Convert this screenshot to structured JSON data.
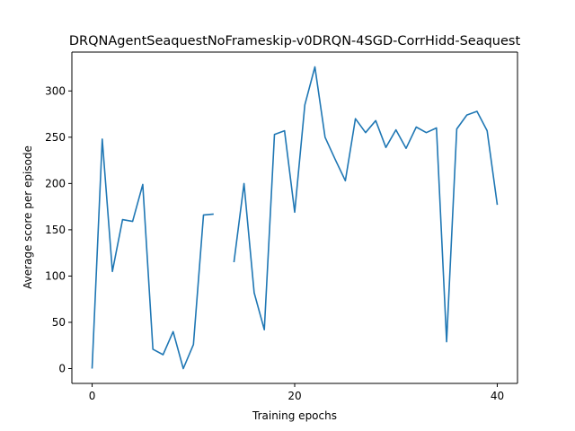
{
  "chart_data": {
    "type": "line",
    "title": "DRQNAgentSeaquestNoFrameskip-v0DRQN-4SGD-CorrHidd-Seaquest",
    "xlabel": "Training epochs",
    "ylabel": "Average score per episode",
    "xlim": [
      -2,
      42
    ],
    "ylim": [
      -16,
      342
    ],
    "xticks": [
      0,
      20,
      40
    ],
    "yticks": [
      0,
      50,
      100,
      150,
      200,
      250,
      300
    ],
    "grid": false,
    "legend": "none",
    "line_color": "#1f77b4",
    "series": [
      {
        "x": [
          0,
          1,
          2,
          3,
          4,
          5,
          6,
          7,
          8,
          9,
          10,
          11,
          12,
          13,
          14,
          15,
          16,
          17,
          18,
          19,
          20,
          21,
          22,
          23,
          24,
          25,
          26,
          27,
          28,
          29,
          30,
          31,
          32,
          33,
          34,
          35,
          36,
          37,
          38,
          39,
          40
        ],
        "values": [
          0,
          248,
          105,
          161,
          159,
          199,
          21,
          15,
          40,
          0,
          26,
          166,
          167,
          null,
          115,
          200,
          82,
          42,
          253,
          257,
          169,
          285,
          326,
          250,
          226,
          203,
          270,
          255,
          268,
          239,
          258,
          238,
          261,
          255,
          260,
          29,
          259,
          274,
          278,
          257,
          177
        ]
      }
    ]
  }
}
